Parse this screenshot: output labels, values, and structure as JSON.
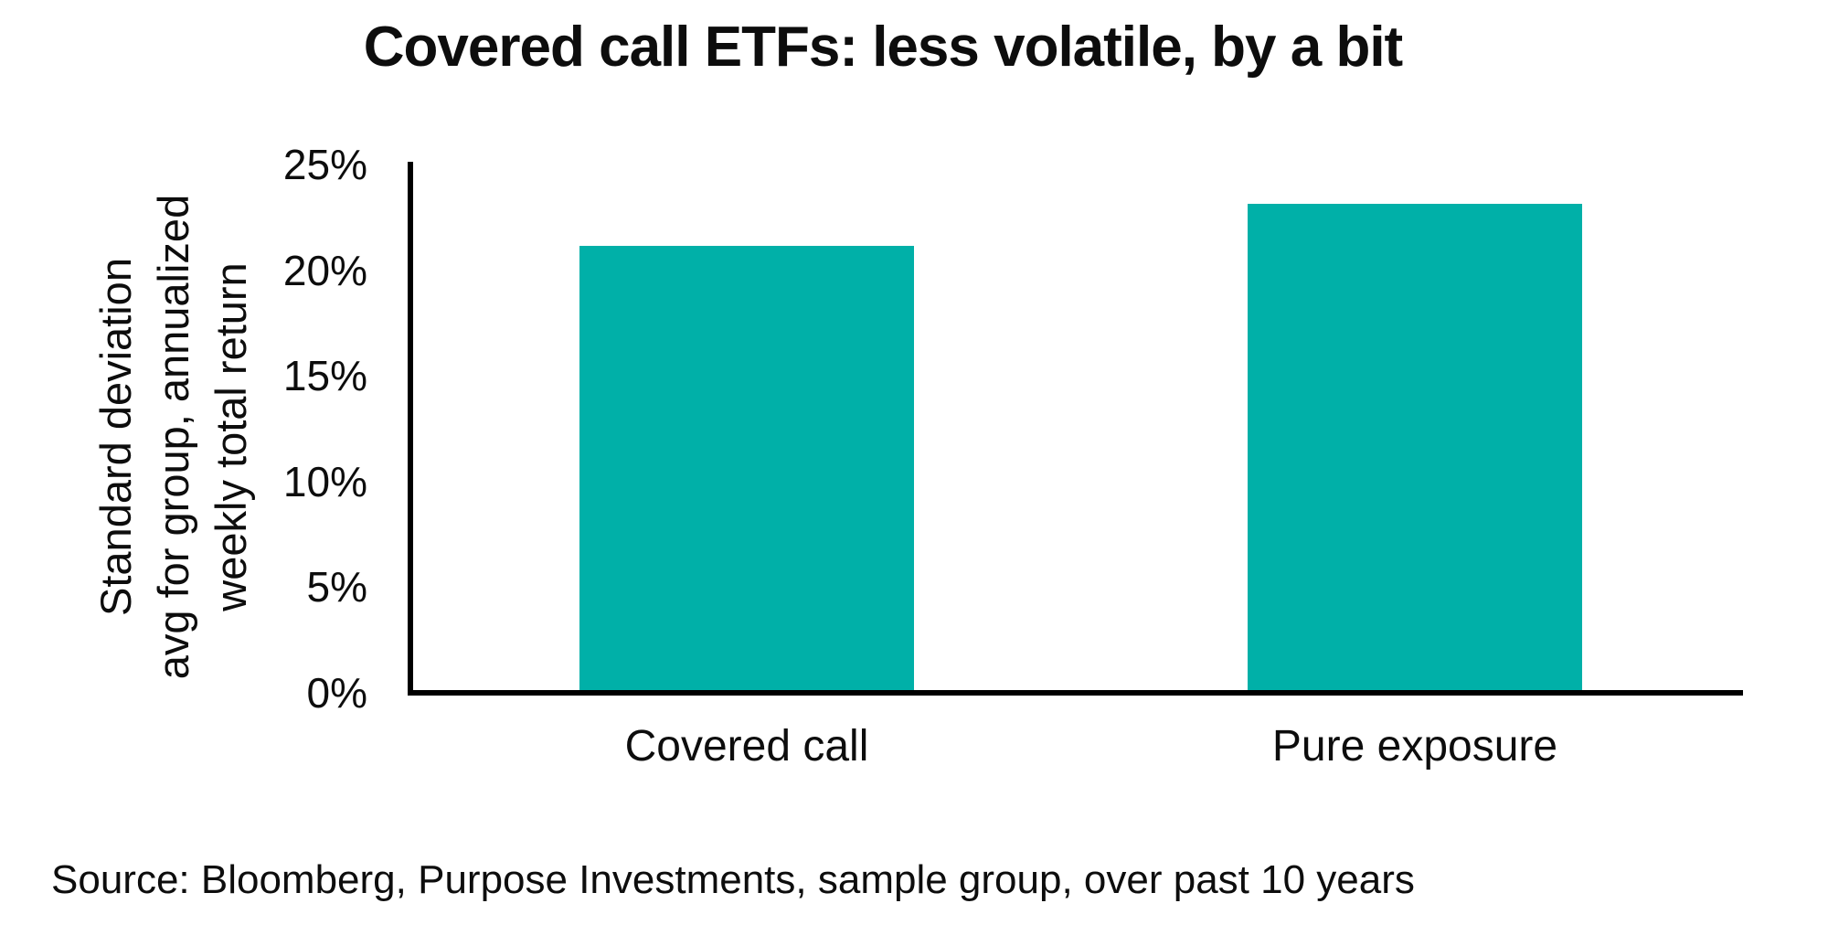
{
  "chart_data": {
    "type": "bar",
    "title": "Covered call ETFs: less volatile, by a bit",
    "categories": [
      "Covered call",
      "Pure exposure"
    ],
    "values": [
      21,
      23
    ],
    "value_unit": "%",
    "ylabel": "Standard deviation\navg for group, annualized\nweekly total return",
    "xlabel": "",
    "yticks": [
      "0%",
      "5%",
      "10%",
      "15%",
      "20%",
      "25%"
    ],
    "ylim": [
      0,
      25
    ],
    "grid": false,
    "legend_position": "none",
    "bar_color": "#00b0a8",
    "axis_color": "#000000",
    "text_color": "#0d0d0d",
    "source": "Source: Bloomberg, Purpose Investments, sample group, over past 10 years"
  }
}
